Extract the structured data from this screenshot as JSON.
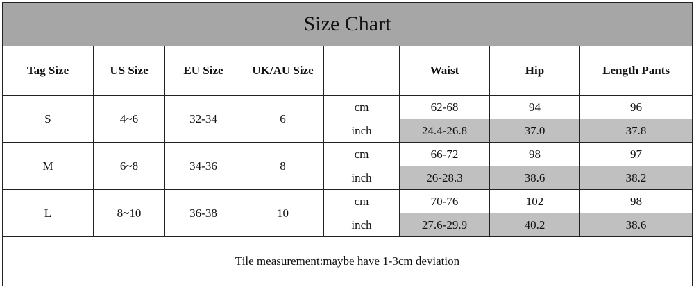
{
  "title": "Size Chart",
  "headers": [
    "Tag Size",
    "US Size",
    "EU Size",
    "UK/AU Size",
    "Waist",
    "Hip",
    "Length Pants"
  ],
  "rows": [
    {
      "tag": "S",
      "us": "4~6",
      "eu": "32-34",
      "uk": "6",
      "units": [
        {
          "unit": "cm",
          "values": [
            "62-68",
            "94",
            "96"
          ]
        },
        {
          "unit": "inch",
          "values": [
            "24.4-26.8",
            "37.0",
            "37.8"
          ]
        }
      ]
    },
    {
      "tag": "M",
      "us": "6~8",
      "eu": "34-36",
      "uk": "8",
      "units": [
        {
          "unit": "cm",
          "values": [
            "66-72",
            "98",
            "97"
          ]
        },
        {
          "unit": "inch",
          "values": [
            "26-28.3",
            "38.6",
            "38.2"
          ]
        }
      ]
    },
    {
      "tag": "L",
      "us": "8~10",
      "eu": "36-38",
      "uk": "10",
      "units": [
        {
          "unit": "cm",
          "values": [
            "70-76",
            "102",
            "98"
          ]
        },
        {
          "unit": "inch",
          "values": [
            "27.6-29.9",
            "40.2",
            "38.6"
          ]
        }
      ]
    }
  ],
  "note": "Tile measurement:maybe have 1-3cm deviation"
}
